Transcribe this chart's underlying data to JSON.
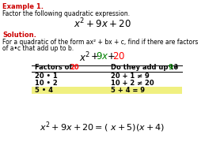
{
  "background_color": "#ffffff",
  "red": "#ff0000",
  "green": "#008000",
  "black": "#000000",
  "bold_red": "#cc0000",
  "highlight_color": "#f0f080",
  "rows": [
    {
      "left": "20 • 1",
      "right": "20 + 1 ≠ 9",
      "highlight": false
    },
    {
      "left": "10 • 2",
      "right": "10 + 2 ≠ 20",
      "highlight": false
    },
    {
      "left": "5 • 4",
      "right": "5 + 4 = 9",
      "highlight": true
    }
  ]
}
